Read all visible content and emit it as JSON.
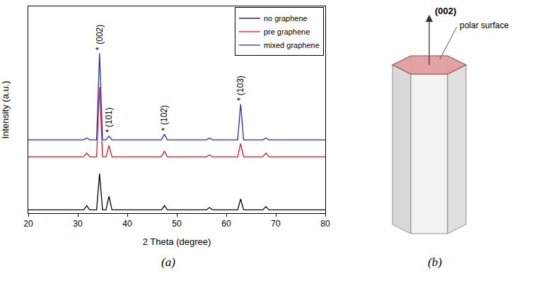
{
  "chart_data": {
    "type": "line",
    "xlabel": "2 Theta (degree)",
    "ylabel": "Intensity (a.u.)",
    "x": [
      20,
      31.2,
      31.8,
      32.4,
      33.8,
      34.4,
      35.0,
      35.7,
      36.3,
      36.9,
      46.9,
      47.5,
      48.1,
      56.0,
      56.6,
      57.2,
      62.3,
      62.9,
      63.5,
      67.4,
      68.0,
      68.6,
      80
    ],
    "series": [
      {
        "name": "no graphene",
        "color": "#000000",
        "values": [
          1.7,
          1.7,
          4,
          1.7,
          1.7,
          21,
          1.7,
          1.7,
          9,
          1.7,
          1.7,
          4,
          1.7,
          1.7,
          3,
          1.7,
          1.7,
          7.5,
          1.7,
          1.7,
          3.5,
          1.7,
          1.7
        ]
      },
      {
        "name": "pre graphene",
        "color": "#e3161c",
        "values": [
          30,
          30,
          32,
          30,
          30,
          67,
          30,
          30,
          36,
          30,
          30,
          33,
          30,
          30,
          31,
          30,
          30,
          37,
          30,
          30,
          32,
          30,
          30
        ]
      },
      {
        "name": "mixed graphene",
        "color": "#1f2bd8",
        "values": [
          39,
          39,
          40,
          39,
          39,
          85,
          39,
          39,
          41,
          39,
          39,
          42,
          39,
          39,
          40,
          39,
          39,
          58,
          39,
          39,
          40,
          39,
          39
        ]
      }
    ],
    "xlim": [
      20,
      80
    ],
    "xticks": [
      20,
      30,
      40,
      50,
      60,
      70,
      80
    ],
    "ylim": [
      0,
      110
    ],
    "tick_labels": "x",
    "grid": false,
    "legend": "top-right",
    "annotations": [
      {
        "text": "*",
        "x": 34.4,
        "y": 86
      },
      {
        "text": "(002)",
        "x": 34.4,
        "y": 89
      },
      {
        "text": "*",
        "x": 36.3,
        "y": 42
      },
      {
        "text": "(101)",
        "x": 36.3,
        "y": 45
      },
      {
        "text": "*",
        "x": 47.5,
        "y": 43
      },
      {
        "text": "(102)",
        "x": 47.5,
        "y": 46
      },
      {
        "text": "*",
        "x": 62.9,
        "y": 59
      },
      {
        "text": "(103)",
        "x": 62.9,
        "y": 62
      }
    ]
  },
  "diagram": {
    "arrow_label": "(002)",
    "callout": "polar surface"
  },
  "panel_labels": [
    "(a)",
    "(b)"
  ]
}
